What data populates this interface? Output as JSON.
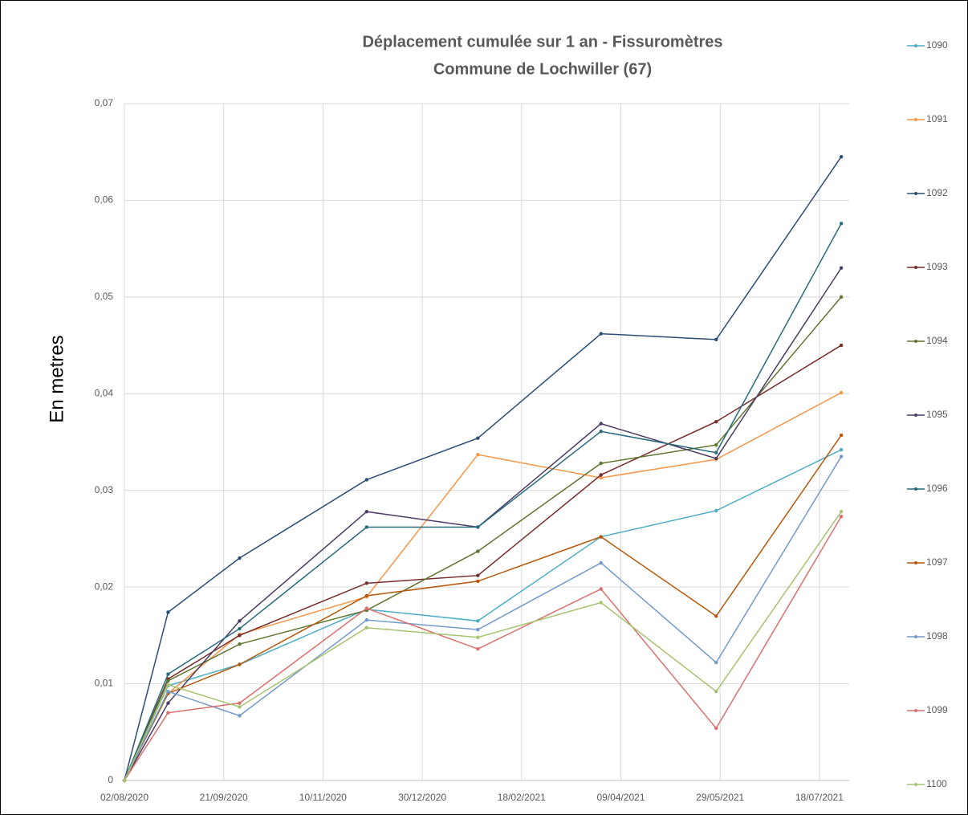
{
  "chart_data": {
    "type": "line",
    "title": [
      "Déplacement cumulée sur 1 an - Fissuromètres",
      "Commune de Lochwiller (67)"
    ],
    "y_label": "En metres",
    "x": [
      "2020-08-02",
      "2020-08-24",
      "2020-09-29",
      "2020-12-02",
      "2021-01-27",
      "2021-03-30",
      "2021-05-27",
      "2021-07-29"
    ],
    "xlim": [
      "2020-08-02",
      "2021-08-02"
    ],
    "xticks": [
      {
        "value": "2020-08-02",
        "label": "02/08/2020"
      },
      {
        "value": "2020-09-21",
        "label": "21/09/2020"
      },
      {
        "value": "2020-11-10",
        "label": "10/11/2020"
      },
      {
        "value": "2020-12-30",
        "label": "30/12/2020"
      },
      {
        "value": "2021-02-18",
        "label": "18/02/2021"
      },
      {
        "value": "2021-04-09",
        "label": "09/04/2021"
      },
      {
        "value": "2021-05-29",
        "label": "29/05/2021"
      },
      {
        "value": "2021-07-18",
        "label": "18/07/2021"
      }
    ],
    "ylim": [
      0,
      0.07
    ],
    "yticks": [
      0,
      {
        "value": 0.01,
        "label": "0,01"
      },
      {
        "value": 0.02,
        "label": "0,02"
      },
      {
        "value": 0.03,
        "label": "0,03"
      },
      {
        "value": 0.04,
        "label": "0,04"
      },
      {
        "value": 0.05,
        "label": "0,05"
      },
      {
        "value": 0.06,
        "label": "0,06"
      },
      {
        "value": 0.07,
        "label": "0,07"
      }
    ],
    "grid": true,
    "legend": "right",
    "series": [
      {
        "name": "1090",
        "color": "#4bacc6",
        "values": [
          0,
          0.0098,
          0.012,
          0.0177,
          0.0165,
          0.0252,
          0.0279,
          0.0342
        ]
      },
      {
        "name": "1091",
        "color": "#f79646",
        "values": [
          0,
          0.009,
          0.0151,
          0.019,
          0.0337,
          0.0313,
          0.0332,
          0.0401
        ]
      },
      {
        "name": "1092",
        "color": "#2c4d75",
        "values": [
          0,
          0.0174,
          0.023,
          0.0311,
          0.0354,
          0.0462,
          0.0456,
          0.0645
        ]
      },
      {
        "name": "1093",
        "color": "#772c2a",
        "values": [
          0,
          0.0105,
          0.015,
          0.0204,
          0.0212,
          0.0316,
          0.0371,
          0.045
        ]
      },
      {
        "name": "1094",
        "color": "#5f7530",
        "values": [
          0,
          0.0103,
          0.0141,
          0.0176,
          0.0237,
          0.0328,
          0.0347,
          0.05
        ]
      },
      {
        "name": "1095",
        "color": "#4d3b62",
        "values": [
          0,
          0.008,
          0.0165,
          0.0278,
          0.0262,
          0.0369,
          0.0333,
          0.053
        ]
      },
      {
        "name": "1096",
        "color": "#276a7c",
        "values": [
          0,
          0.011,
          0.0157,
          0.0262,
          0.0262,
          0.0361,
          0.0339,
          0.0576
        ]
      },
      {
        "name": "1097",
        "color": "#b65708",
        "values": [
          0,
          0.009,
          0.012,
          0.0191,
          0.0206,
          0.0252,
          0.017,
          0.0357
        ]
      },
      {
        "name": "1098",
        "color": "#729aca",
        "values": [
          0,
          0.0092,
          0.0067,
          0.0166,
          0.0156,
          0.0225,
          0.0122,
          0.0335
        ]
      },
      {
        "name": "1099",
        "color": "#d9706e",
        "values": [
          0,
          0.007,
          0.008,
          0.0178,
          0.0136,
          0.0198,
          0.0054,
          0.0273
        ]
      },
      {
        "name": "1100",
        "color": "#a6c36e",
        "values": [
          0,
          0.0099,
          0.0076,
          0.0158,
          0.0148,
          0.0184,
          0.0092,
          0.0278
        ]
      }
    ]
  }
}
